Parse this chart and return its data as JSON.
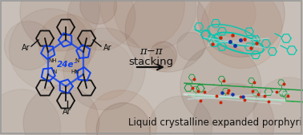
{
  "bg_color": "#c8c0b8",
  "bg_inner_color": "#ccc4bc",
  "title_text": "Liquid crystalline expanded porphyrin",
  "title_fontsize": 8.5,
  "title_color": "#111111",
  "pi_pi_text": "π−π",
  "stacking_text": "stacking",
  "arrow_color": "#111111",
  "label_24e": "24e⁻",
  "ar_label": "Ar",
  "porphyrin_blue": "#1040ee",
  "porphyrin_black": "#111111",
  "crystal_cyan": "#00c8b0",
  "crystal_cyan2": "#00a090",
  "crystal_red": "#cc2200",
  "crystal_green": "#22aa44",
  "crystal_white": "#d0e0e0",
  "crystal_blue": "#2244cc",
  "figsize": [
    3.78,
    1.69
  ],
  "dpi": 100
}
